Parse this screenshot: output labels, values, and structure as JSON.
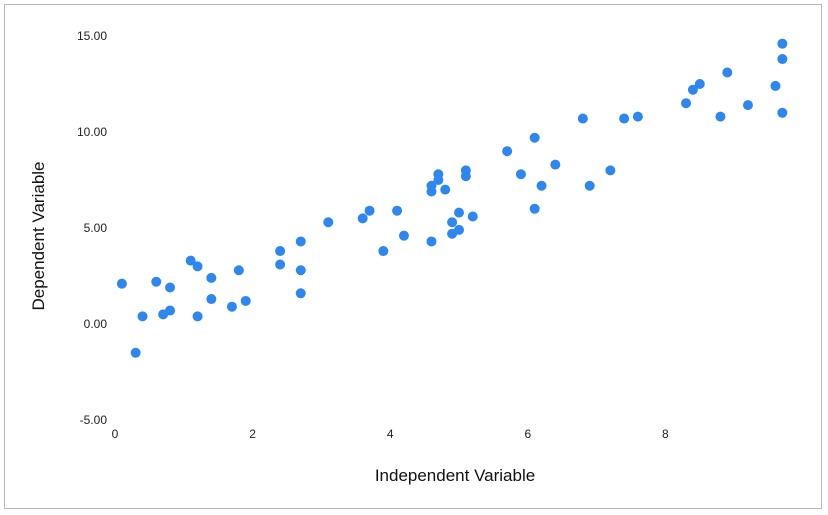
{
  "chart_data": {
    "type": "scatter",
    "xlabel": "Independent Variable",
    "ylabel": "Dependent Variable",
    "xlim": [
      0,
      10
    ],
    "ylim": [
      -5,
      15
    ],
    "x_ticks": [
      0,
      2,
      4,
      6,
      8
    ],
    "x_tick_labels": [
      "0",
      "2",
      "4",
      "6",
      "8"
    ],
    "y_ticks": [
      15,
      10,
      5,
      0,
      -5
    ],
    "y_tick_labels": [
      "15.00",
      "10.00",
      "5.00",
      "0.00",
      "-5.00"
    ],
    "grid": false,
    "legend": "none",
    "marker_color": "#2e86f0",
    "points": [
      {
        "x": 0.1,
        "y": 2.1
      },
      {
        "x": 0.3,
        "y": -1.5
      },
      {
        "x": 0.4,
        "y": 0.4
      },
      {
        "x": 0.6,
        "y": 2.2
      },
      {
        "x": 0.7,
        "y": 0.5
      },
      {
        "x": 0.8,
        "y": 1.9
      },
      {
        "x": 0.8,
        "y": 0.7
      },
      {
        "x": 1.1,
        "y": 3.3
      },
      {
        "x": 1.2,
        "y": 3.0
      },
      {
        "x": 1.2,
        "y": 0.4
      },
      {
        "x": 1.4,
        "y": 2.4
      },
      {
        "x": 1.4,
        "y": 1.3
      },
      {
        "x": 1.7,
        "y": 0.9
      },
      {
        "x": 1.8,
        "y": 2.8
      },
      {
        "x": 1.9,
        "y": 1.2
      },
      {
        "x": 2.4,
        "y": 3.8
      },
      {
        "x": 2.4,
        "y": 3.1
      },
      {
        "x": 2.7,
        "y": 4.3
      },
      {
        "x": 2.7,
        "y": 2.8
      },
      {
        "x": 2.7,
        "y": 1.6
      },
      {
        "x": 3.1,
        "y": 5.3
      },
      {
        "x": 3.6,
        "y": 5.5
      },
      {
        "x": 3.7,
        "y": 5.9
      },
      {
        "x": 3.9,
        "y": 3.8
      },
      {
        "x": 4.1,
        "y": 5.9
      },
      {
        "x": 4.2,
        "y": 4.6
      },
      {
        "x": 4.6,
        "y": 7.2
      },
      {
        "x": 4.6,
        "y": 6.9
      },
      {
        "x": 4.6,
        "y": 4.3
      },
      {
        "x": 4.7,
        "y": 7.8
      },
      {
        "x": 4.7,
        "y": 7.5
      },
      {
        "x": 4.8,
        "y": 7.0
      },
      {
        "x": 4.9,
        "y": 5.3
      },
      {
        "x": 4.9,
        "y": 4.7
      },
      {
        "x": 5.0,
        "y": 5.8
      },
      {
        "x": 5.0,
        "y": 4.9
      },
      {
        "x": 5.1,
        "y": 8.0
      },
      {
        "x": 5.1,
        "y": 7.7
      },
      {
        "x": 5.2,
        "y": 5.6
      },
      {
        "x": 5.7,
        "y": 9.0
      },
      {
        "x": 5.9,
        "y": 7.8
      },
      {
        "x": 6.1,
        "y": 9.7
      },
      {
        "x": 6.1,
        "y": 6.0
      },
      {
        "x": 6.2,
        "y": 7.2
      },
      {
        "x": 6.4,
        "y": 8.3
      },
      {
        "x": 6.8,
        "y": 10.7
      },
      {
        "x": 6.9,
        "y": 7.2
      },
      {
        "x": 7.2,
        "y": 8.0
      },
      {
        "x": 7.4,
        "y": 10.7
      },
      {
        "x": 7.6,
        "y": 10.8
      },
      {
        "x": 8.3,
        "y": 11.5
      },
      {
        "x": 8.4,
        "y": 12.2
      },
      {
        "x": 8.5,
        "y": 12.5
      },
      {
        "x": 8.8,
        "y": 10.8
      },
      {
        "x": 8.9,
        "y": 13.1
      },
      {
        "x": 9.2,
        "y": 11.4
      },
      {
        "x": 9.6,
        "y": 12.4
      },
      {
        "x": 9.7,
        "y": 14.6
      },
      {
        "x": 9.7,
        "y": 13.8
      },
      {
        "x": 9.7,
        "y": 11.0
      }
    ]
  }
}
